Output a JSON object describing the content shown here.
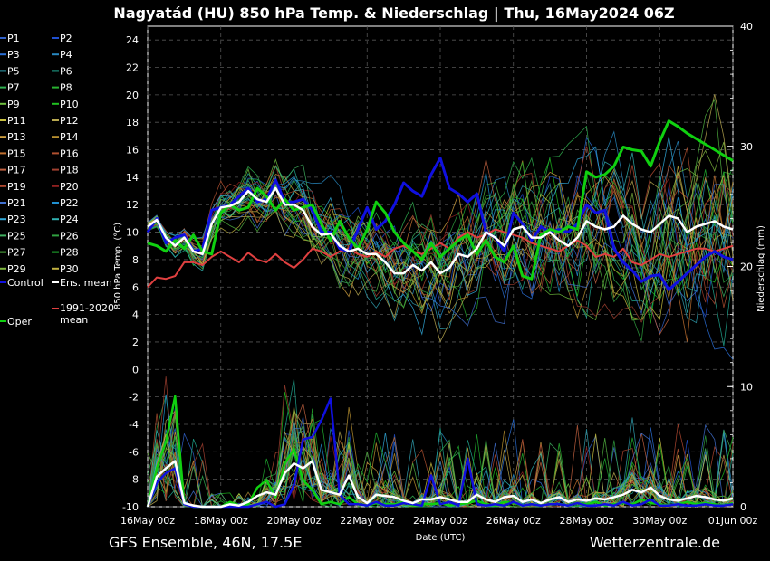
{
  "chart_data": {
    "type": "line",
    "title": "Nagyatád  (HU)  850 hPa Temp. & Niederschlag | Thu, 16May2024 06Z",
    "ylabel": "850 hPa Temp. (°C)",
    "y2label": "Niederschlag (mm)",
    "xlabel": "Date (UTC)",
    "ylim": [
      -10,
      25
    ],
    "y2lim": [
      0,
      40
    ],
    "yticks": [
      "24",
      "22",
      "20",
      "18",
      "16",
      "14",
      "12",
      "10",
      "8",
      "6",
      "4",
      "2",
      "0",
      "-2",
      "-4",
      "-6",
      "-8",
      "-10"
    ],
    "y2ticks": [
      "40",
      "30",
      "20",
      "10",
      "0"
    ],
    "xticks": [
      "16May 00z",
      "18May 00z",
      "20May 00z",
      "22May 00z",
      "24May 00z",
      "26May 00z",
      "28May 00z",
      "30May 00z",
      "01Jun 00z"
    ],
    "grid": true,
    "legend_position": "left",
    "legend": {
      "members": [
        "P1",
        "P2",
        "P3",
        "P4",
        "P5",
        "P6",
        "P7",
        "P8",
        "P9",
        "P10",
        "P11",
        "P12",
        "P13",
        "P14",
        "P15",
        "P16",
        "P17",
        "P18",
        "P19",
        "P20",
        "P21",
        "P22",
        "P23",
        "P24",
        "P25",
        "P26",
        "P27",
        "P28",
        "P29",
        "P30"
      ],
      "member_colors": [
        "#3060c8",
        "#2050d0",
        "#2a70d8",
        "#2888c0",
        "#30a0b0",
        "#20a890",
        "#30b050",
        "#28b030",
        "#70c040",
        "#20c020",
        "#c8c040",
        "#b8a850",
        "#d0a040",
        "#b89030",
        "#c07030",
        "#b05030",
        "#c06040",
        "#a04030",
        "#b04830",
        "#902020",
        "#4070d0",
        "#2090d0",
        "#30a8d8",
        "#30b0b0",
        "#40b060",
        "#30a040",
        "#50b040",
        "#20b030",
        "#80b840",
        "#c0b040"
      ],
      "control": "Control",
      "ens_mean": "Ens. mean",
      "clim_mean": "1991-2020 mean",
      "oper": "Oper"
    },
    "series_styles": {
      "control": "#1010e0",
      "ens_mean": "#ffffff",
      "clim_mean": "#e04040",
      "oper": "#10d010"
    },
    "temperature": {
      "x_days": [
        0,
        0.25,
        0.5,
        0.75,
        1,
        1.25,
        1.5,
        1.75,
        2,
        2.25,
        2.5,
        2.75,
        3,
        3.25,
        3.5,
        3.75,
        4,
        4.25,
        4.5,
        4.75,
        5,
        5.25,
        5.5,
        5.75,
        6,
        6.25,
        6.5,
        6.75,
        7,
        7.25,
        7.5,
        7.75,
        8,
        8.25,
        8.5,
        8.75,
        9,
        9.25,
        9.5,
        9.75,
        10,
        10.25,
        10.5,
        10.75,
        11,
        11.25,
        11.5,
        11.75,
        12,
        12.25,
        12.5,
        12.75,
        13,
        13.25,
        13.5,
        13.75,
        14,
        14.25,
        14.5,
        14.75,
        15,
        15.25,
        15.5,
        15.75,
        16
      ],
      "oper": [
        9.2,
        9.0,
        8.6,
        9.4,
        8.8,
        9.8,
        8.6,
        8.4,
        11.4,
        12.0,
        11.6,
        11.8,
        13.2,
        12.6,
        11.6,
        12.4,
        11.6,
        11.8,
        12.0,
        10.6,
        9.4,
        10.8,
        9.6,
        8.8,
        10.2,
        12.2,
        11.4,
        10.0,
        9.2,
        8.6,
        8.0,
        9.2,
        8.2,
        8.8,
        9.4,
        9.8,
        8.4,
        9.4,
        8.2,
        7.8,
        9.0,
        6.8,
        6.6,
        9.8,
        10.2,
        10.0,
        10.4,
        10.2,
        14.4,
        14.0,
        14.2,
        14.8,
        16.2,
        16.0,
        15.9,
        14.8,
        16.6,
        18.1,
        17.7,
        17.2,
        16.8,
        16.4,
        16.0,
        15.6,
        15.2
      ],
      "control": [
        10.0,
        11.0,
        9.2,
        9.6,
        9.8,
        8.6,
        8.8,
        11.6,
        11.8,
        12.0,
        12.6,
        13.2,
        12.2,
        12.4,
        13.8,
        12.2,
        12.2,
        12.4,
        11.6,
        10.0,
        10.0,
        8.8,
        8.6,
        10.2,
        11.8,
        10.2,
        10.8,
        12.0,
        13.6,
        13.0,
        12.6,
        14.2,
        15.4,
        13.2,
        12.8,
        12.2,
        12.8,
        10.0,
        9.6,
        8.6,
        11.4,
        10.6,
        9.4,
        10.4,
        10.0,
        10.2,
        10.0,
        10.6,
        12.0,
        11.4,
        11.6,
        8.8,
        7.8,
        7.2,
        6.4,
        6.8,
        6.9,
        5.8,
        6.4,
        7.0,
        7.6,
        8.2,
        8.6,
        8.2,
        8.0
      ],
      "ens_mean": [
        10.4,
        10.9,
        9.6,
        9.0,
        9.6,
        8.6,
        8.4,
        10.6,
        11.8,
        11.9,
        12.2,
        13.0,
        12.4,
        12.2,
        13.2,
        12.0,
        12.0,
        11.6,
        10.4,
        9.8,
        9.9,
        9.0,
        8.6,
        8.8,
        8.4,
        8.4,
        7.8,
        7.0,
        7.0,
        7.6,
        7.2,
        7.8,
        7.0,
        7.4,
        8.4,
        8.2,
        8.8,
        10.0,
        9.6,
        9.0,
        10.2,
        10.4,
        9.6,
        9.6,
        10.0,
        9.4,
        9.0,
        9.6,
        10.8,
        10.4,
        10.2,
        10.4,
        11.2,
        10.6,
        10.2,
        10.0,
        10.6,
        11.2,
        11.0,
        10.0,
        10.4,
        10.6,
        10.8,
        10.4,
        10.2
      ],
      "clim_mean": [
        6.0,
        6.7,
        6.6,
        6.8,
        7.8,
        7.8,
        7.6,
        8.2,
        8.6,
        8.2,
        7.8,
        8.5,
        8.0,
        7.8,
        8.4,
        7.8,
        7.4,
        8.0,
        8.8,
        8.6,
        8.2,
        8.6,
        8.8,
        8.4,
        8.2,
        8.6,
        8.2,
        8.8,
        9.0,
        8.6,
        8.4,
        8.8,
        9.2,
        8.8,
        9.6,
        10.0,
        9.6,
        9.8,
        10.2,
        10.0,
        9.8,
        9.6,
        9.2,
        9.0,
        8.8,
        8.6,
        9.0,
        9.4,
        9.0,
        8.2,
        8.4,
        8.2,
        8.8,
        7.8,
        7.6,
        8.0,
        8.4,
        8.2,
        8.4,
        8.6,
        8.8,
        8.8,
        8.6,
        8.8,
        9.0
      ]
    },
    "precipitation": {
      "x_days": [
        0,
        0.25,
        0.5,
        0.75,
        1,
        1.25,
        1.5,
        1.75,
        2,
        2.25,
        2.5,
        2.75,
        3,
        3.25,
        3.5,
        3.75,
        4,
        4.25,
        4.5,
        4.75,
        5,
        5.25,
        5.5,
        5.75,
        6,
        6.25,
        6.5,
        6.75,
        7,
        7.25,
        7.5,
        7.75,
        8,
        8.25,
        8.5,
        8.75,
        9,
        9.25,
        9.5,
        9.75,
        10,
        10.25,
        10.5,
        10.75,
        11,
        11.25,
        11.5,
        11.75,
        12,
        12.25,
        12.5,
        12.75,
        13,
        13.25,
        13.5,
        13.75,
        14,
        14.25,
        14.5,
        14.75,
        15,
        15.25,
        15.5,
        15.75,
        16
      ],
      "ens_mean": [
        0,
        2.5,
        3.2,
        3.8,
        0.3,
        0.1,
        0,
        0,
        0,
        0.2,
        0.1,
        0.4,
        0.9,
        1.2,
        1.0,
        2.8,
        3.6,
        3.2,
        3.8,
        1.4,
        1.2,
        1.0,
        2.6,
        0.8,
        0.3,
        1.0,
        0.9,
        0.8,
        0.5,
        0.3,
        0.6,
        0.6,
        0.8,
        0.6,
        0.4,
        0.4,
        1.0,
        0.6,
        0.4,
        0.8,
        0.9,
        0.4,
        0.6,
        0.3,
        0.6,
        0.8,
        0.4,
        0.6,
        0.5,
        0.7,
        0.6,
        0.8,
        1.0,
        1.4,
        1.2,
        1.6,
        0.9,
        0.6,
        0.5,
        0.7,
        0.9,
        0.8,
        0.6,
        0.5,
        0.7
      ],
      "control": [
        0,
        2.0,
        2.8,
        3.2,
        0.2,
        0,
        0,
        0,
        0,
        0,
        0,
        0,
        0.2,
        0.4,
        0,
        0.2,
        1.8,
        5.6,
        5.8,
        7.2,
        9.0,
        1.0,
        0.2,
        0.2,
        0.1,
        0.4,
        0.1,
        0.1,
        0.3,
        0.2,
        0.1,
        2.6,
        0.2,
        0.4,
        0.1,
        4.0,
        0.2,
        0.1,
        0.2,
        0.1,
        0.4,
        0.1,
        0.2,
        0.1,
        0.2,
        0.2,
        0.1,
        0.3,
        0.1,
        0.1,
        0.2,
        0.1,
        0.4,
        0.1,
        0.2,
        0.6,
        0.1,
        0.1,
        0.2,
        0.1,
        0.1,
        0.2,
        0.1,
        0.1,
        0.2
      ],
      "oper": [
        0,
        3.2,
        5.4,
        9.2,
        0.2,
        0,
        0,
        0,
        0,
        0.4,
        0.1,
        0.2,
        1.6,
        2.2,
        0.8,
        3.6,
        4.8,
        2.2,
        1.4,
        0.2,
        0.4,
        0.2,
        0.8,
        0.2,
        0.1,
        0.3,
        0.2,
        0.2,
        0.4,
        0.1,
        0.2,
        0.2,
        0.3,
        0.1,
        0.2,
        0.3,
        0.5,
        0.2,
        0.1,
        0.4,
        0.3,
        0.1,
        0.2,
        0.1,
        0.2,
        0.2,
        0.1,
        0.3,
        0.2,
        0.4,
        0.1,
        0.2,
        0.3,
        0.2,
        0.6,
        0.3,
        0.2,
        0.1,
        0.2,
        0.4,
        0.2,
        0.3,
        0.2,
        0.1,
        0.3
      ]
    }
  },
  "footer": {
    "left": "GFS Ensemble, 46N, 17.5E",
    "right": "Wetterzentrale.de"
  }
}
